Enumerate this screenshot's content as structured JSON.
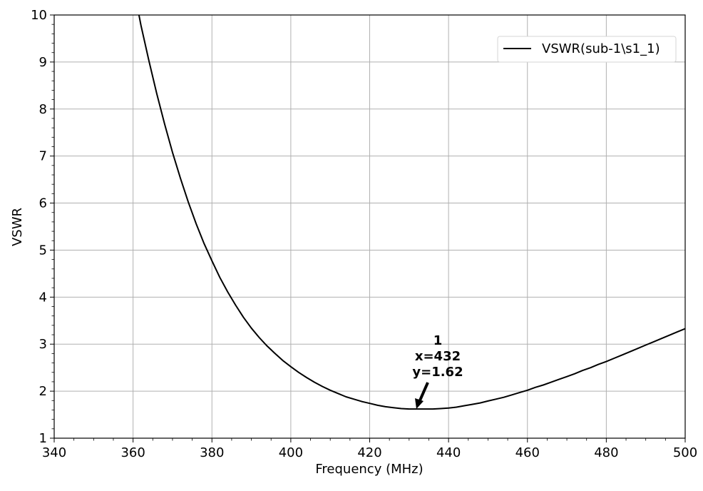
{
  "chart_data": {
    "type": "line",
    "xlabel": "Frequency (MHz)",
    "ylabel": "VSWR",
    "xlim": [
      340,
      500
    ],
    "ylim": [
      1,
      10
    ],
    "xticks": [
      340,
      360,
      380,
      400,
      420,
      440,
      460,
      480,
      500
    ],
    "yticks": [
      1,
      2,
      3,
      4,
      5,
      6,
      7,
      8,
      9,
      10
    ],
    "grid": true,
    "legend_position": "top-right",
    "series": [
      {
        "name": "VSWR(sub-1\\s1_1)",
        "color": "#000000",
        "x": [
          361.5,
          362,
          364,
          366,
          368,
          370,
          372,
          374,
          376,
          378,
          380,
          382,
          384,
          386,
          388,
          390,
          392,
          394,
          396,
          398,
          400,
          402,
          404,
          406,
          408,
          410,
          412,
          414,
          416,
          418,
          420,
          422,
          424,
          426,
          428,
          430,
          432,
          434,
          436,
          438,
          440,
          442,
          444,
          446,
          448,
          450,
          452,
          454,
          456,
          458,
          460,
          462,
          464,
          466,
          468,
          470,
          472,
          474,
          476,
          478,
          480,
          482,
          484,
          486,
          488,
          490,
          492,
          494,
          496,
          498,
          500
        ],
        "y": [
          10.0,
          9.78,
          9.03,
          8.33,
          7.68,
          7.08,
          6.53,
          6.02,
          5.56,
          5.14,
          4.77,
          4.42,
          4.11,
          3.83,
          3.57,
          3.34,
          3.14,
          2.96,
          2.8,
          2.65,
          2.52,
          2.4,
          2.29,
          2.19,
          2.1,
          2.02,
          1.95,
          1.88,
          1.83,
          1.78,
          1.74,
          1.7,
          1.67,
          1.65,
          1.63,
          1.62,
          1.62,
          1.62,
          1.62,
          1.63,
          1.64,
          1.66,
          1.69,
          1.72,
          1.75,
          1.79,
          1.83,
          1.87,
          1.92,
          1.97,
          2.02,
          2.08,
          2.13,
          2.19,
          2.25,
          2.31,
          2.37,
          2.44,
          2.5,
          2.57,
          2.63,
          2.7,
          2.77,
          2.84,
          2.91,
          2.98,
          3.05,
          3.12,
          3.19,
          3.26,
          3.33
        ]
      }
    ],
    "annotations": [
      {
        "marker": "1",
        "x_text": "x=432",
        "y_text": "y=1.62",
        "x": 432,
        "y": 1.62
      }
    ]
  }
}
